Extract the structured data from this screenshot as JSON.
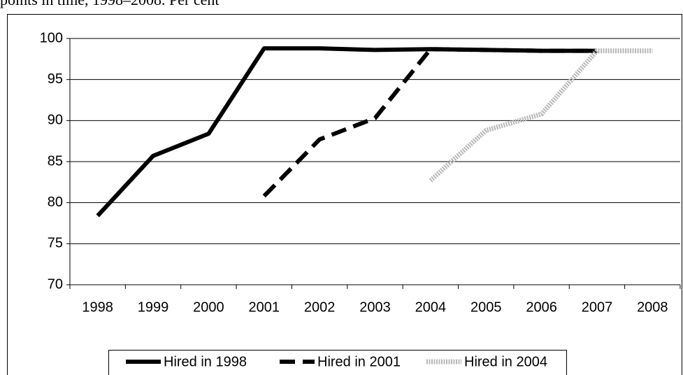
{
  "chart_data": {
    "type": "line",
    "title": "points in time, 1998–2008. Per cent",
    "categories": [
      "1998",
      "1999",
      "2000",
      "2001",
      "2002",
      "2003",
      "2004",
      "2005",
      "2006",
      "2007",
      "2008"
    ],
    "series": [
      {
        "name": "Hired in 1998",
        "color": "#000000",
        "style": "solid",
        "values": [
          78.4,
          85.7,
          88.4,
          98.8,
          98.8,
          98.6,
          98.7,
          98.6,
          98.5,
          98.5,
          null
        ]
      },
      {
        "name": "Hired in 2001",
        "color": "#000000",
        "style": "dashed",
        "values": [
          null,
          null,
          null,
          80.8,
          87.7,
          90.3,
          98.7,
          98.6,
          98.5,
          98.5,
          null
        ]
      },
      {
        "name": "Hired in 2004",
        "color": "#b8b8b8",
        "style": "dotted",
        "values": [
          null,
          null,
          null,
          null,
          null,
          null,
          82.7,
          88.8,
          90.8,
          98.5,
          98.5
        ]
      }
    ],
    "ylim": [
      70,
      100
    ],
    "yticks": [
      70,
      75,
      80,
      85,
      90,
      95,
      100
    ],
    "grid": true,
    "legend": "bottom"
  }
}
